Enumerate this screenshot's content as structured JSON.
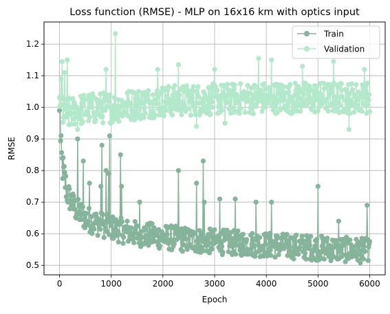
{
  "chart_data": {
    "type": "line",
    "title": "Loss function (RMSE) - MLP on 16x16 km with optics input",
    "xlabel": "Epoch",
    "ylabel": "RMSE",
    "xlim": [
      -300,
      6300
    ],
    "ylim": [
      0.47,
      1.27
    ],
    "xticks": [
      0,
      1000,
      2000,
      3000,
      4000,
      5000,
      6000
    ],
    "yticks": [
      0.5,
      0.6,
      0.7,
      0.8,
      0.9,
      1.0,
      1.1,
      1.2
    ],
    "xtick_labels": [
      "0",
      "1000",
      "2000",
      "3000",
      "4000",
      "5000",
      "6000"
    ],
    "ytick_labels": [
      "0.5",
      "0.6",
      "0.7",
      "0.8",
      "0.9",
      "1.0",
      "1.1",
      "1.2"
    ],
    "grid": true,
    "legend_position": "top-right",
    "marker": "circle",
    "series": [
      {
        "name": "Train",
        "color": "#86b49a",
        "x": [
          0,
          25,
          50,
          100,
          150,
          200,
          300,
          400,
          500,
          700,
          1000,
          1200,
          1500,
          2000,
          2500,
          3000,
          3500,
          4000,
          4500,
          5000,
          5500,
          6000
        ],
        "y": [
          0.95,
          0.86,
          0.82,
          0.77,
          0.73,
          0.71,
          0.68,
          0.665,
          0.65,
          0.635,
          0.62,
          0.61,
          0.6,
          0.59,
          0.58,
          0.575,
          0.57,
          0.565,
          0.56,
          0.555,
          0.55,
          0.545
        ],
        "band": [
          0.06,
          0.06,
          0.055,
          0.05,
          0.045,
          0.04,
          0.04,
          0.04,
          0.04,
          0.04,
          0.04,
          0.04,
          0.04,
          0.04,
          0.04,
          0.04,
          0.04,
          0.04,
          0.04,
          0.04,
          0.04,
          0.04
        ],
        "spikes": [
          [
            0,
            0.99
          ],
          [
            10,
            1.03
          ],
          [
            350,
            0.9
          ],
          [
            460,
            0.83
          ],
          [
            580,
            0.76
          ],
          [
            800,
            0.75
          ],
          [
            820,
            0.88
          ],
          [
            900,
            0.8
          ],
          [
            950,
            0.79
          ],
          [
            970,
            0.91
          ],
          [
            1180,
            0.85
          ],
          [
            1200,
            0.75
          ],
          [
            1550,
            0.7
          ],
          [
            2300,
            0.8
          ],
          [
            2650,
            0.76
          ],
          [
            2780,
            0.83
          ],
          [
            2800,
            0.7
          ],
          [
            3100,
            0.71
          ],
          [
            3400,
            0.71
          ],
          [
            3800,
            0.7
          ],
          [
            4100,
            0.7
          ],
          [
            5000,
            0.795
          ],
          [
            5000,
            0.75
          ],
          [
            5400,
            0.64
          ],
          [
            5950,
            0.69
          ]
        ]
      },
      {
        "name": "Validation",
        "color": "#b3e8cb",
        "x": [
          0,
          25,
          50,
          100,
          200,
          300,
          500,
          1000,
          2000,
          3000,
          4000,
          5000,
          6000
        ],
        "y": [
          1.01,
          1.04,
          1.0,
          0.98,
          0.98,
          0.99,
          0.995,
          1.0,
          1.02,
          1.025,
          1.03,
          1.03,
          1.03
        ],
        "band": [
          0.07,
          0.06,
          0.07,
          0.06,
          0.05,
          0.05,
          0.05,
          0.05,
          0.05,
          0.05,
          0.05,
          0.05,
          0.05
        ],
        "spikes": [
          [
            50,
            1.145
          ],
          [
            150,
            1.15
          ],
          [
            100,
            1.11
          ],
          [
            900,
            1.12
          ],
          [
            1080,
            1.233
          ],
          [
            1900,
            1.12
          ],
          [
            2300,
            1.135
          ],
          [
            3000,
            1.12
          ],
          [
            3850,
            1.155
          ],
          [
            4100,
            1.15
          ],
          [
            4700,
            1.13
          ],
          [
            5300,
            1.145
          ],
          [
            5900,
            1.12
          ],
          [
            5600,
            0.93
          ],
          [
            2650,
            0.94
          ],
          [
            3200,
            0.95
          ],
          [
            350,
            0.93
          ]
        ]
      }
    ]
  }
}
